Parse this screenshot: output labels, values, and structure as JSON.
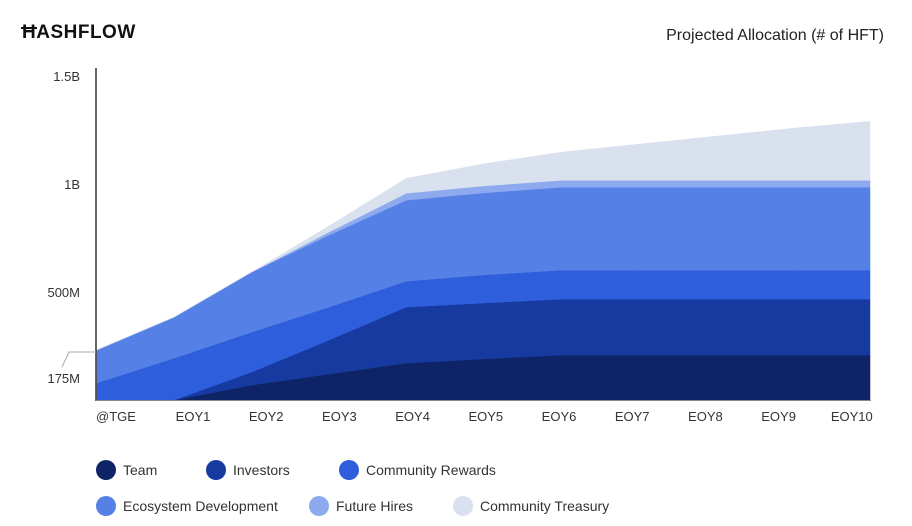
{
  "logo": "HASHFLOW",
  "chart_data": {
    "type": "area",
    "stacked": true,
    "title": "Projected Allocation (# of HFT)",
    "categories": [
      "@TGE",
      "EOY1",
      "EOY2",
      "EOY3",
      "EOY4",
      "EOY5",
      "EOY6",
      "EOY7",
      "EOY8",
      "EOY9",
      "EOY10"
    ],
    "y_unit": "millions of HFT",
    "ylim": [
      0,
      1500
    ],
    "y_ticks": [
      {
        "value": 1500,
        "label": "1.5B"
      },
      {
        "value": 1000,
        "label": "1B"
      },
      {
        "value": 500,
        "label": "500M"
      },
      {
        "value": 175,
        "label": "175M"
      }
    ],
    "grid": false,
    "legend_placement": "bottom",
    "series": [
      {
        "name": "Team",
        "color": "#0f2466",
        "values": [
          0,
          0,
          69,
          120,
          171,
          190,
          208,
          208,
          208,
          208,
          208
        ]
      },
      {
        "name": "Investors",
        "color": "#163aa0",
        "values": [
          0,
          0,
          60,
          157,
          259,
          259,
          259,
          259,
          259,
          259,
          259
        ]
      },
      {
        "name": "Community Rewards",
        "color": "#2f5edc",
        "values": [
          79,
          194,
          185,
          153,
          120,
          130,
          134,
          134,
          134,
          134,
          134
        ]
      },
      {
        "name": "Ecosystem Development",
        "color": "#5580e6",
        "values": [
          153,
          190,
          278,
          333,
          375,
          380,
          384,
          384,
          384,
          384,
          384
        ]
      },
      {
        "name": "Future Hires",
        "color": "#8eaaee",
        "values": [
          0,
          0,
          0,
          14,
          32,
          32,
          32,
          32,
          32,
          32,
          32
        ]
      },
      {
        "name": "Community Treasury",
        "color": "#d9e0ee",
        "values": [
          0,
          0,
          0,
          28,
          69,
          102,
          130,
          167,
          204,
          241,
          273
        ]
      }
    ]
  }
}
